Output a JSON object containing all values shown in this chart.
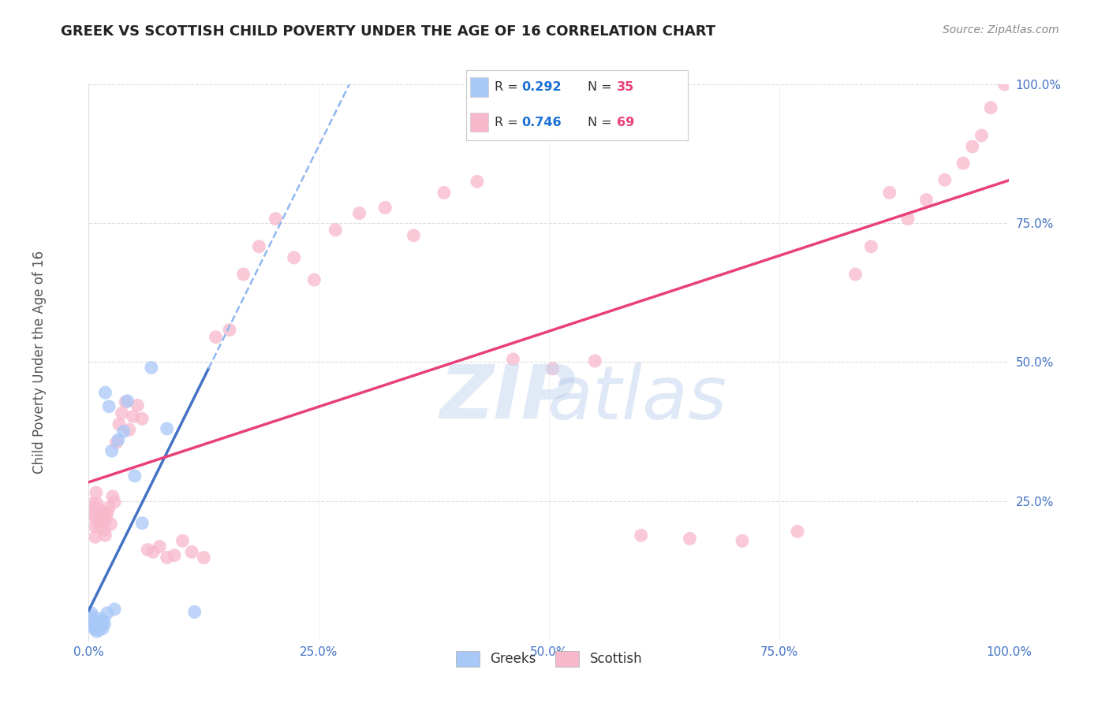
{
  "title": "GREEK VS SCOTTISH CHILD POVERTY UNDER THE AGE OF 16 CORRELATION CHART",
  "source": "Source: ZipAtlas.com",
  "ylabel": "Child Poverty Under the Age of 16",
  "xlim": [
    0,
    1
  ],
  "ylim": [
    0,
    1
  ],
  "xticks": [
    0,
    0.25,
    0.5,
    0.75,
    1.0
  ],
  "yticks": [
    0.25,
    0.5,
    0.75,
    1.0
  ],
  "xticklabels": [
    "0.0%",
    "25.0%",
    "50.0%",
    "75.0%",
    "100.0%"
  ],
  "yticklabels": [
    "25.0%",
    "50.0%",
    "75.0%",
    "100.0%"
  ],
  "greek_color": "#a8c8f8",
  "scottish_color": "#f8b8cc",
  "greek_line_color": "#4472c4",
  "scottish_line_color": "#e8407a",
  "greek_dash_color": "#90b8f0",
  "watermark_zip_color": "#c8d8f0",
  "watermark_atlas_color": "#b8ccec",
  "R_greek": 0.292,
  "N_greek": 35,
  "R_scottish": 0.746,
  "N_scottish": 69,
  "legend_label_color": "#333333",
  "legend_value_color": "#1a6fd4",
  "legend_n_color": "#e8407a",
  "title_color": "#222222",
  "source_color": "#888888",
  "axis_tick_color": "#4472c4",
  "ylabel_color": "#555555",
  "grid_color": "#dddddd",
  "background_color": "#ffffff",
  "greek_x": [
    0.003,
    0.004,
    0.004,
    0.005,
    0.005,
    0.006,
    0.006,
    0.007,
    0.007,
    0.008,
    0.008,
    0.009,
    0.009,
    0.01,
    0.01,
    0.011,
    0.012,
    0.013,
    0.014,
    0.015,
    0.016,
    0.017,
    0.018,
    0.02,
    0.022,
    0.025,
    0.028,
    0.032,
    0.038,
    0.042,
    0.05,
    0.058,
    0.068,
    0.085,
    0.115
  ],
  "greek_y": [
    0.048,
    0.042,
    0.038,
    0.035,
    0.03,
    0.028,
    0.025,
    0.022,
    0.018,
    0.02,
    0.032,
    0.025,
    0.015,
    0.03,
    0.022,
    0.018,
    0.028,
    0.038,
    0.025,
    0.02,
    0.035,
    0.028,
    0.445,
    0.048,
    0.42,
    0.34,
    0.055,
    0.36,
    0.375,
    0.43,
    0.295,
    0.21,
    0.49,
    0.38,
    0.05
  ],
  "scottish_x": [
    0.003,
    0.004,
    0.005,
    0.006,
    0.007,
    0.008,
    0.009,
    0.01,
    0.011,
    0.012,
    0.013,
    0.014,
    0.015,
    0.016,
    0.017,
    0.018,
    0.019,
    0.02,
    0.022,
    0.024,
    0.026,
    0.028,
    0.03,
    0.033,
    0.036,
    0.04,
    0.044,
    0.048,
    0.053,
    0.058,
    0.064,
    0.07,
    0.077,
    0.085,
    0.093,
    0.102,
    0.112,
    0.125,
    0.138,
    0.153,
    0.168,
    0.185,
    0.203,
    0.223,
    0.245,
    0.268,
    0.294,
    0.322,
    0.353,
    0.386,
    0.422,
    0.461,
    0.504,
    0.55,
    0.6,
    0.653,
    0.71,
    0.77,
    0.833,
    0.85,
    0.87,
    0.89,
    0.91,
    0.93,
    0.95,
    0.96,
    0.97,
    0.98,
    0.995
  ],
  "scottish_y": [
    0.23,
    0.245,
    0.225,
    0.205,
    0.185,
    0.265,
    0.245,
    0.212,
    0.235,
    0.202,
    0.222,
    0.212,
    0.228,
    0.222,
    0.198,
    0.188,
    0.218,
    0.228,
    0.238,
    0.208,
    0.258,
    0.248,
    0.355,
    0.388,
    0.408,
    0.428,
    0.378,
    0.402,
    0.422,
    0.398,
    0.162,
    0.158,
    0.168,
    0.148,
    0.152,
    0.178,
    0.158,
    0.148,
    0.545,
    0.558,
    0.658,
    0.708,
    0.758,
    0.688,
    0.648,
    0.738,
    0.768,
    0.778,
    0.728,
    0.805,
    0.825,
    0.505,
    0.488,
    0.502,
    0.188,
    0.182,
    0.178,
    0.195,
    0.658,
    0.708,
    0.805,
    0.758,
    0.792,
    0.828,
    0.858,
    0.888,
    0.908,
    0.958,
    1.0
  ]
}
